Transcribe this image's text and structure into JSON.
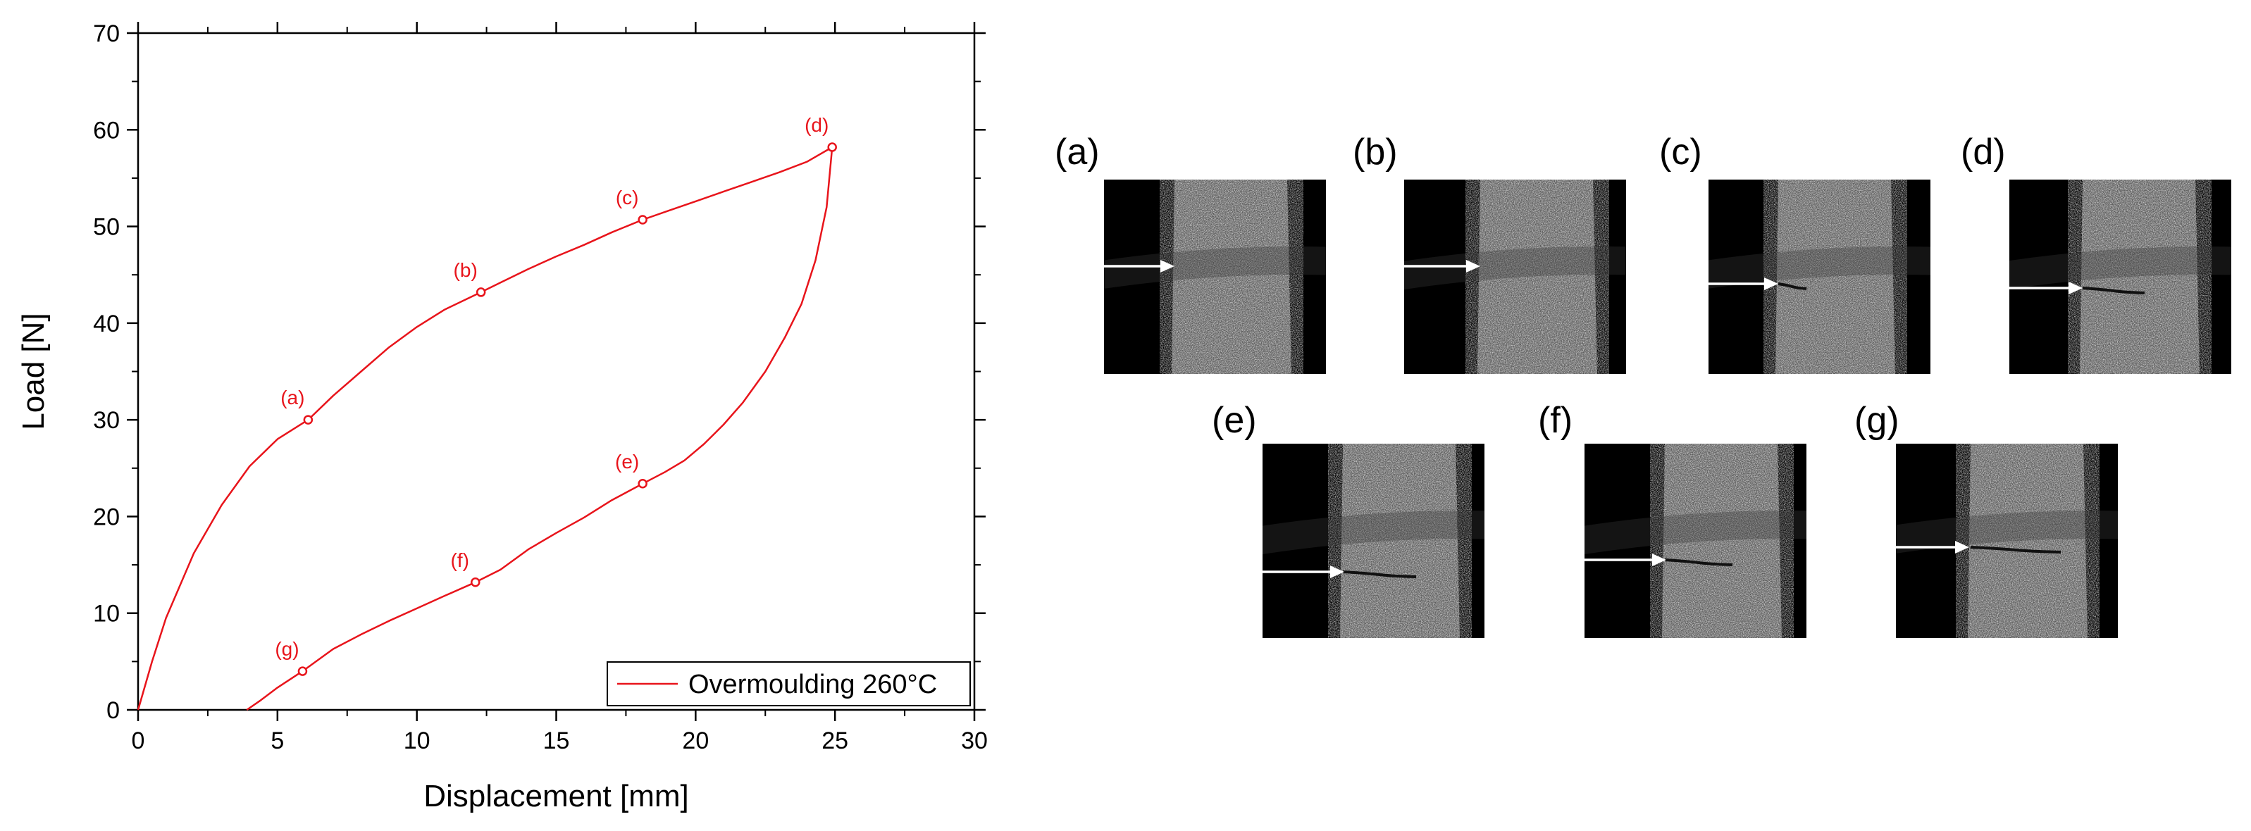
{
  "chart_data": {
    "type": "line",
    "xlabel": "Displacement [mm]",
    "ylabel": "Load [N]",
    "xlim": [
      0,
      30
    ],
    "ylim": [
      0,
      70
    ],
    "x_ticks": [
      0,
      5,
      10,
      15,
      20,
      25,
      30
    ],
    "y_ticks": [
      0,
      10,
      20,
      30,
      40,
      50,
      60,
      70
    ],
    "grid": false,
    "legend_position": "bottom-right",
    "series": [
      {
        "name": "Overmoulding 260°C",
        "color": "#e8141b",
        "x": [
          0,
          0.5,
          1,
          2,
          3,
          4,
          5,
          6.1,
          7,
          8,
          9,
          10,
          11,
          12.3,
          13,
          14,
          15,
          16,
          17,
          18.1,
          19,
          20,
          21,
          22,
          23,
          24,
          24.9,
          24.7,
          24.3,
          23.8,
          23.2,
          22.5,
          21.7,
          21,
          20.3,
          19.6,
          18.9,
          18.1,
          17,
          16,
          15,
          14,
          13,
          12.1,
          11,
          10,
          9,
          8,
          7,
          5.9,
          5,
          4.4,
          3.9
        ],
        "y": [
          0,
          5,
          9.5,
          16.2,
          21.2,
          25.2,
          28,
          30,
          32.5,
          35,
          37.5,
          39.6,
          41.4,
          43.2,
          44.2,
          45.6,
          46.9,
          48.1,
          49.4,
          50.7,
          51.6,
          52.6,
          53.6,
          54.6,
          55.6,
          56.7,
          58.2,
          52,
          46.5,
          42,
          38.5,
          35,
          31.8,
          29.5,
          27.5,
          25.8,
          24.6,
          23.4,
          21.7,
          19.9,
          18.3,
          16.6,
          14.5,
          13.2,
          11.8,
          10.5,
          9.2,
          7.8,
          6.3,
          4,
          2.3,
          1,
          0
        ]
      }
    ],
    "markers": [
      {
        "label": "(a)",
        "x": 6.1,
        "y": 30
      },
      {
        "label": "(b)",
        "x": 12.3,
        "y": 43.2
      },
      {
        "label": "(c)",
        "x": 18.1,
        "y": 50.7
      },
      {
        "label": "(d)",
        "x": 24.9,
        "y": 58.2
      },
      {
        "label": "(e)",
        "x": 18.1,
        "y": 23.4
      },
      {
        "label": "(f)",
        "x": 12.1,
        "y": 13.2
      },
      {
        "label": "(g)",
        "x": 5.9,
        "y": 4
      }
    ]
  },
  "images": [
    {
      "label": "(a)",
      "crack": 0
    },
    {
      "label": "(b)",
      "crack": 0
    },
    {
      "label": "(c)",
      "crack": 0.25
    },
    {
      "label": "(d)",
      "crack": 0.55
    },
    {
      "label": "(e)",
      "crack": 0.65
    },
    {
      "label": "(f)",
      "crack": 0.6
    },
    {
      "label": "(g)",
      "crack": 0.8
    }
  ]
}
